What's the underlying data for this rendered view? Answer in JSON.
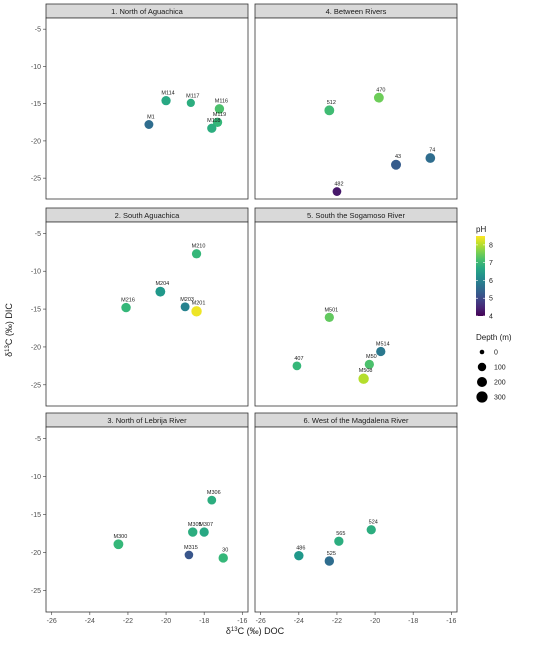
{
  "chart_data": {
    "type": "scatter",
    "xlabel_parts": {
      "pre": "δ",
      "sup": "13",
      "post": "C (‰) DOC"
    },
    "ylabel_parts": {
      "pre": "δ",
      "sup": "13",
      "post": "C (‰) DIC"
    },
    "xlim": [
      -26.3,
      -15.7
    ],
    "ylim": [
      -27.8,
      -3.5
    ],
    "x_ticks": [
      -26,
      -24,
      -22,
      -20,
      -18,
      -16
    ],
    "y_ticks": [
      -5,
      -10,
      -15,
      -20,
      -25
    ],
    "x_tick_labels": [
      "-26",
      "-24",
      "-22",
      "-20",
      "-18",
      "-16"
    ],
    "y_tick_labels": [
      "-5",
      "-10",
      "-15",
      "-20",
      "-25"
    ],
    "color_scale": {
      "title": "pH",
      "min": 4,
      "max": 8.5,
      "ticks": [
        4,
        5,
        6,
        7,
        8
      ],
      "tick_labels": [
        "4",
        "5",
        "6",
        "7",
        "8"
      ]
    },
    "size_scale": {
      "title": "Depth (m)",
      "values": [
        0,
        100,
        200,
        300
      ],
      "labels": [
        "0",
        "100",
        "200",
        "300"
      ]
    },
    "facets": [
      {
        "title": "1. North of Aguachica",
        "points": [
          {
            "label": "M114",
            "x": -20.0,
            "y": -14.6,
            "ph": 6.7,
            "depth": 150
          },
          {
            "label": "M117",
            "x": -18.7,
            "y": -14.9,
            "ph": 6.8,
            "depth": 90
          },
          {
            "label": "M116",
            "x": -17.2,
            "y": -15.7,
            "ph": 7.2,
            "depth": 160
          },
          {
            "label": "M119",
            "x": -17.3,
            "y": -17.5,
            "ph": 7.0,
            "depth": 160
          },
          {
            "label": "M118",
            "x": -17.6,
            "y": -18.3,
            "ph": 6.8,
            "depth": 150
          },
          {
            "label": "M1",
            "x": -20.9,
            "y": -17.8,
            "ph": 5.6,
            "depth": 130
          }
        ]
      },
      {
        "title": "4. Between Rivers",
        "points": [
          {
            "label": "512",
            "x": -22.4,
            "y": -15.9,
            "ph": 7.1,
            "depth": 190
          },
          {
            "label": "470",
            "x": -19.8,
            "y": -14.2,
            "ph": 7.5,
            "depth": 190
          },
          {
            "label": "43",
            "x": -18.9,
            "y": -23.2,
            "ph": 5.3,
            "depth": 200
          },
          {
            "label": "74",
            "x": -17.1,
            "y": -22.3,
            "ph": 5.6,
            "depth": 180
          },
          {
            "label": "482",
            "x": -22.0,
            "y": -26.8,
            "ph": 4.3,
            "depth": 120
          }
        ]
      },
      {
        "title": "2. South Aguachica",
        "points": [
          {
            "label": "M210",
            "x": -18.4,
            "y": -7.7,
            "ph": 7.0,
            "depth": 150
          },
          {
            "label": "M204",
            "x": -20.3,
            "y": -12.7,
            "ph": 6.4,
            "depth": 190
          },
          {
            "label": "M216",
            "x": -22.1,
            "y": -14.8,
            "ph": 7.0,
            "depth": 160
          },
          {
            "label": "M203",
            "x": -19.0,
            "y": -14.7,
            "ph": 6.0,
            "depth": 130
          },
          {
            "label": "M201",
            "x": -18.4,
            "y": -15.3,
            "ph": 8.4,
            "depth": 230
          }
        ]
      },
      {
        "title": "5. South the Sogamoso River",
        "points": [
          {
            "label": "M501",
            "x": -22.4,
            "y": -16.1,
            "ph": 7.4,
            "depth": 150
          },
          {
            "label": "M514",
            "x": -19.7,
            "y": -20.6,
            "ph": 5.8,
            "depth": 150
          },
          {
            "label": "M50",
            "x": -20.3,
            "y": -22.3,
            "ph": 7.2,
            "depth": 150
          },
          {
            "label": "407",
            "x": -24.1,
            "y": -22.5,
            "ph": 7.0,
            "depth": 120
          },
          {
            "label": "M508",
            "x": -20.6,
            "y": -24.2,
            "ph": 8.0,
            "depth": 230
          }
        ]
      },
      {
        "title": "3. North of Lebrija River",
        "points": [
          {
            "label": "M306",
            "x": -17.6,
            "y": -13.1,
            "ph": 6.8,
            "depth": 120
          },
          {
            "label": "M305",
            "x": -18.6,
            "y": -17.3,
            "ph": 6.8,
            "depth": 160
          },
          {
            "label": "M307",
            "x": -18.0,
            "y": -17.3,
            "ph": 6.7,
            "depth": 150
          },
          {
            "label": "M300",
            "x": -22.5,
            "y": -18.9,
            "ph": 7.0,
            "depth": 190
          },
          {
            "label": "M315",
            "x": -18.8,
            "y": -20.3,
            "ph": 5.2,
            "depth": 110
          },
          {
            "label": "30",
            "x": -17.0,
            "y": -20.7,
            "ph": 7.0,
            "depth": 160
          }
        ]
      },
      {
        "title": "6. West of the Magdalena River",
        "points": [
          {
            "label": "486",
            "x": -24.0,
            "y": -20.4,
            "ph": 6.4,
            "depth": 160
          },
          {
            "label": "525",
            "x": -22.4,
            "y": -21.1,
            "ph": 5.6,
            "depth": 160
          },
          {
            "label": "565",
            "x": -21.9,
            "y": -18.5,
            "ph": 6.8,
            "depth": 150
          },
          {
            "label": "524",
            "x": -20.2,
            "y": -17.0,
            "ph": 6.8,
            "depth": 150
          }
        ]
      }
    ]
  }
}
